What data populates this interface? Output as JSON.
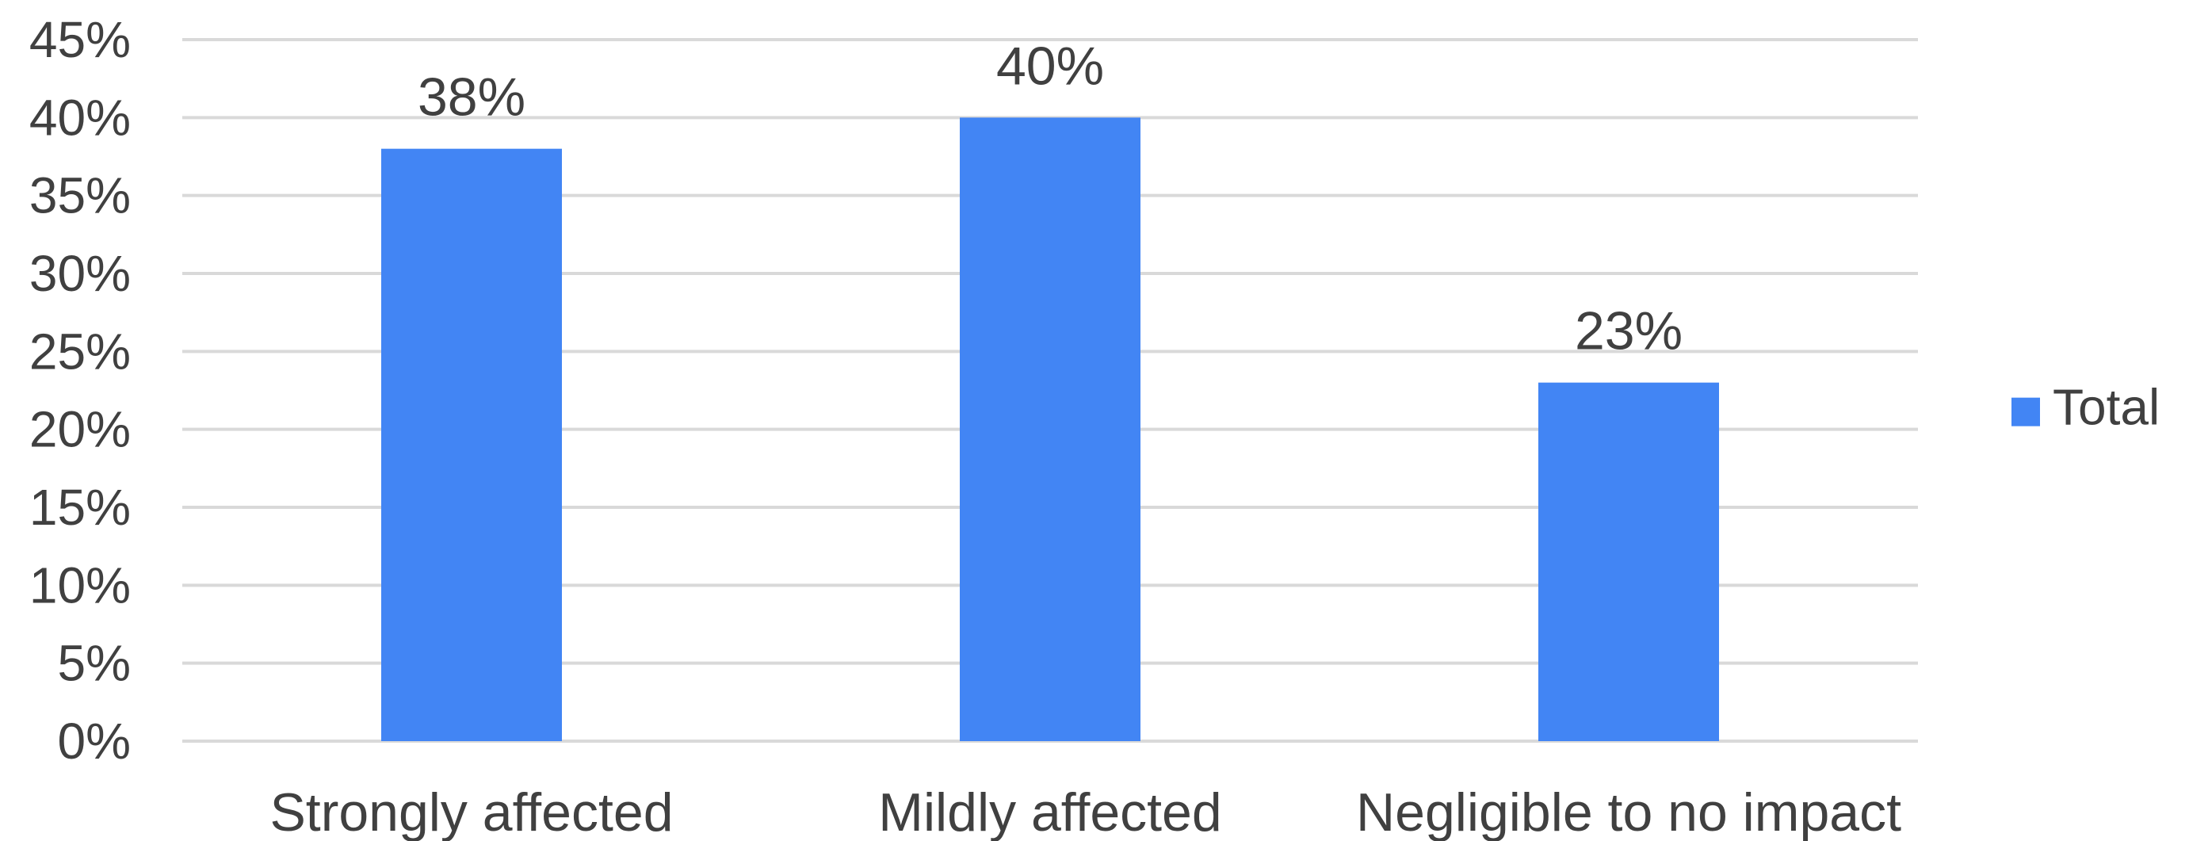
{
  "chart_data": {
    "type": "bar",
    "title": "",
    "xlabel": "",
    "ylabel": "",
    "categories": [
      "Strongly affected",
      "Mildly affected",
      "Negligible to no impact"
    ],
    "series": [
      {
        "name": "Total",
        "values": [
          38,
          40,
          23
        ],
        "color": "#4285f4"
      }
    ],
    "data_labels": [
      "38%",
      "40%",
      "23%"
    ],
    "ylim": [
      0,
      45
    ],
    "y_ticks": [
      0,
      5,
      10,
      15,
      20,
      25,
      30,
      35,
      40,
      45
    ],
    "y_tick_labels": [
      "0%",
      "5%",
      "10%",
      "15%",
      "20%",
      "25%",
      "30%",
      "35%",
      "40%",
      "45%"
    ],
    "grid": true,
    "legend_position": "right",
    "gridline_color": "#d9d9d9",
    "text_color": "#404040"
  }
}
